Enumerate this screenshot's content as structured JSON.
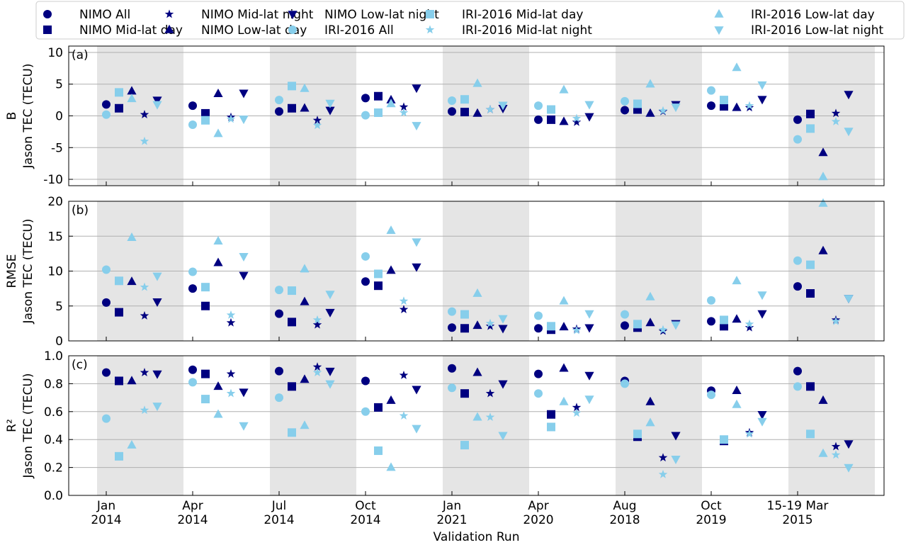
{
  "chart_data": [
    {
      "type": "scatter",
      "panel_label": "(a)",
      "ylabel": [
        "B",
        "Jason TEC (TECU)"
      ],
      "ylim": [
        -11,
        11
      ],
      "yticks": [
        -10,
        -5,
        0,
        5,
        10
      ],
      "grid": true,
      "shaded": true,
      "series": [
        {
          "name": "NIMO All",
          "color": "#000080",
          "marker": "circle",
          "values": [
            1.8,
            1.6,
            0.7,
            2.8,
            0.7,
            -0.6,
            0.9,
            1.6,
            -0.6
          ]
        },
        {
          "name": "NIMO Mid-lat day",
          "color": "#000080",
          "marker": "square",
          "values": [
            1.2,
            0.4,
            1.2,
            3.1,
            0.6,
            -0.6,
            1.0,
            1.5,
            0.3
          ]
        },
        {
          "name": "NIMO Mid-lat night",
          "color": "#000080",
          "marker": "star",
          "values": [
            0.2,
            -0.2,
            -0.7,
            1.4,
            1.0,
            -1.0,
            0.7,
            1.3,
            0.4
          ]
        },
        {
          "name": "NIMO Low-lat day",
          "color": "#000080",
          "marker": "triangle-up",
          "values": [
            3.9,
            3.5,
            1.2,
            2.5,
            0.4,
            -0.9,
            0.4,
            1.3,
            -5.8
          ]
        },
        {
          "name": "NIMO Low-lat night",
          "color": "#000080",
          "marker": "triangle-down",
          "values": [
            2.5,
            3.6,
            0.9,
            4.4,
            1.2,
            -0.1,
            1.8,
            2.6,
            3.4
          ]
        },
        {
          "name": "IRI-2016 All",
          "color": "#87ceeb",
          "marker": "circle",
          "values": [
            0.2,
            -1.4,
            2.5,
            0.1,
            2.4,
            1.6,
            2.3,
            4.0,
            -3.7
          ]
        },
        {
          "name": "IRI-2016 Mid-lat day",
          "color": "#87ceeb",
          "marker": "square",
          "values": [
            3.7,
            -0.7,
            4.7,
            0.5,
            2.6,
            1.0,
            1.9,
            2.5,
            -2.0
          ]
        },
        {
          "name": "IRI-2016 Mid-lat night",
          "color": "#87ceeb",
          "marker": "star",
          "values": [
            -4.0,
            -0.5,
            -1.5,
            0.5,
            1.0,
            -0.4,
            0.8,
            1.6,
            -0.9
          ]
        },
        {
          "name": "IRI-2016 Low-lat day",
          "color": "#87ceeb",
          "marker": "triangle-up",
          "values": [
            2.7,
            -2.8,
            4.3,
            1.9,
            5.1,
            4.1,
            5.0,
            7.6,
            -9.6
          ]
        },
        {
          "name": "IRI-2016 Low-lat night",
          "color": "#87ceeb",
          "marker": "triangle-down",
          "values": [
            1.8,
            -0.5,
            2.0,
            -1.5,
            1.7,
            1.8,
            1.4,
            4.9,
            -2.4
          ]
        }
      ]
    },
    {
      "type": "scatter",
      "panel_label": "(b)",
      "ylabel": [
        "RMSE",
        "Jason TEC (TECU)"
      ],
      "ylim": [
        0,
        20
      ],
      "yticks": [
        0,
        5,
        10,
        15,
        20
      ],
      "grid": true,
      "shaded": true,
      "series": [
        {
          "values": [
            5.5,
            7.5,
            3.9,
            8.5,
            1.9,
            1.8,
            2.2,
            2.8,
            7.8
          ]
        },
        {
          "values": [
            4.1,
            5.0,
            2.7,
            7.9,
            1.8,
            1.6,
            1.9,
            2.1,
            6.8
          ]
        },
        {
          "values": [
            3.6,
            2.6,
            2.3,
            4.5,
            2.1,
            1.7,
            1.4,
            1.9,
            3.0
          ]
        },
        {
          "values": [
            8.5,
            11.2,
            5.6,
            10.1,
            2.2,
            2.0,
            2.6,
            3.1,
            12.9
          ]
        },
        {
          "values": [
            5.6,
            9.4,
            4.1,
            10.6,
            1.8,
            1.9,
            2.5,
            3.9,
            6.1
          ]
        },
        {
          "values": [
            10.2,
            9.9,
            7.3,
            12.1,
            4.2,
            3.6,
            3.8,
            5.8,
            11.5
          ]
        },
        {
          "values": [
            8.6,
            7.7,
            7.2,
            9.6,
            3.8,
            2.1,
            2.4,
            3.0,
            10.9
          ]
        },
        {
          "values": [
            7.7,
            3.7,
            3.0,
            5.7,
            2.5,
            1.5,
            1.6,
            2.4,
            2.8
          ]
        },
        {
          "values": [
            14.8,
            14.3,
            10.3,
            15.8,
            6.8,
            5.7,
            6.3,
            8.6,
            19.7
          ]
        },
        {
          "values": [
            9.3,
            12.1,
            6.7,
            14.2,
            3.2,
            3.9,
            2.3,
            6.6,
            6.1
          ]
        }
      ]
    },
    {
      "type": "scatter",
      "panel_label": "(c)",
      "ylabel": [
        "R²",
        "Jason TEC (TECU)"
      ],
      "ylim": [
        0,
        1
      ],
      "yticks": [
        {
          "value": 0,
          "label": "0.0"
        },
        0.2,
        0.4,
        0.6,
        0.8,
        {
          "value": 1,
          "label": "1.0"
        }
      ],
      "grid": true,
      "shaded": true,
      "xlabel": "Validation Run",
      "categories": [
        [
          "Jan",
          "2014"
        ],
        [
          "Apr",
          "2014"
        ],
        [
          "Jul",
          "2014"
        ],
        [
          "Oct",
          "2014"
        ],
        [
          "Jan",
          "2021"
        ],
        [
          "Apr",
          "2020"
        ],
        [
          "Aug",
          "2018"
        ],
        [
          "Oct",
          "2019"
        ],
        [
          "15-19 Mar",
          "2015"
        ]
      ],
      "series": [
        {
          "values": [
            0.88,
            0.9,
            0.89,
            0.82,
            0.91,
            0.87,
            0.82,
            0.75,
            0.89
          ]
        },
        {
          "values": [
            0.82,
            0.87,
            0.78,
            0.63,
            0.73,
            0.58,
            0.42,
            0.39,
            0.78
          ]
        },
        {
          "values": [
            0.88,
            0.87,
            0.92,
            0.86,
            0.73,
            0.63,
            0.27,
            0.45,
            0.35
          ]
        },
        {
          "values": [
            0.82,
            0.78,
            0.83,
            0.68,
            0.88,
            0.91,
            0.67,
            0.75,
            0.68
          ]
        },
        {
          "values": [
            0.87,
            0.74,
            0.89,
            0.76,
            0.8,
            0.86,
            0.43,
            0.58,
            0.37
          ]
        },
        {
          "values": [
            0.55,
            0.81,
            0.7,
            0.6,
            0.77,
            0.73,
            0.8,
            0.72,
            0.78
          ]
        },
        {
          "values": [
            0.28,
            0.69,
            0.45,
            0.32,
            0.36,
            0.49,
            0.44,
            0.4,
            0.44
          ]
        },
        {
          "values": [
            0.61,
            0.73,
            0.88,
            0.57,
            0.56,
            0.59,
            0.15,
            0.44,
            0.29
          ]
        },
        {
          "values": [
            0.36,
            0.58,
            0.5,
            0.2,
            0.56,
            0.67,
            0.52,
            0.65,
            0.3
          ]
        },
        {
          "values": [
            0.64,
            0.5,
            0.8,
            0.48,
            0.43,
            0.69,
            0.26,
            0.53,
            0.2
          ]
        }
      ]
    }
  ]
}
